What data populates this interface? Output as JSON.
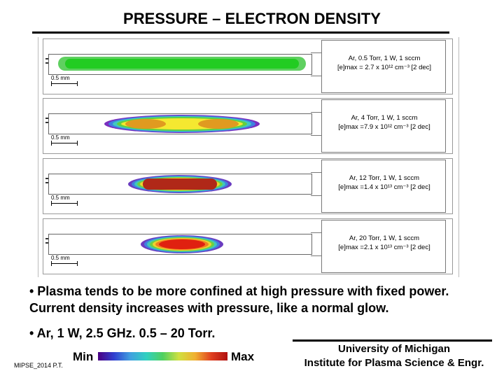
{
  "title": "PRESSURE – ELECTRON DENSITY",
  "scale_label": "0.5 mm",
  "panels": [
    {
      "line1": "Ar, 0.5 Torr, 1 W, 1 sccm",
      "line2": "[e]max = 2.7 x 10¹² cm⁻³ [2 dec]"
    },
    {
      "line1": "Ar, 4 Torr, 1 W, 1 sccm",
      "line2": "[e]max =7.9 x 10¹² cm⁻³ [2 dec]"
    },
    {
      "line1": "Ar, 12 Torr, 1 W, 1 sccm",
      "line2": "[e]max =1.4 x 10¹³ cm⁻³ [2 dec]"
    },
    {
      "line1": "Ar, 20 Torr, 1 W, 1 sccm",
      "line2": "[e]max =2.1 x 10¹³ cm⁻³ [2 dec]"
    }
  ],
  "bullets": {
    "b1": "• Plasma tends to be more confined at high pressure with fixed power. Current density increases with pressure, like a normal glow.",
    "b2": "• Ar, 1 W, 2.5 GHz. 0.5 – 20 Torr."
  },
  "colorbar": {
    "min": "Min",
    "max": "Max"
  },
  "footer_id": "MIPSE_2014 P.T.",
  "affiliation": {
    "line1": "University of Michigan",
    "line2": "Institute for Plasma Science & Engr."
  }
}
